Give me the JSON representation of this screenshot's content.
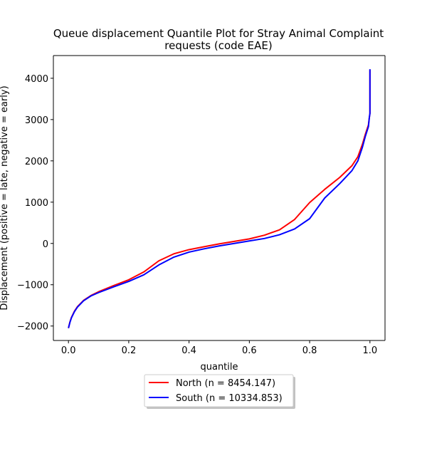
{
  "chart_data": {
    "type": "line",
    "title": "Queue displacement Quantile Plot for Stray Animal Complaint requests (code EAE)",
    "title_lines": [
      "Queue displacement Quantile Plot for Stray Animal Complaint",
      "requests (code EAE)"
    ],
    "xlabel": "quantile",
    "ylabel": "Displacement (positive = late, negative = early)",
    "xlim": [
      -0.05,
      1.05
    ],
    "ylim": [
      -2350,
      4550
    ],
    "x_ticks": [
      0.0,
      0.2,
      0.4,
      0.6,
      0.8,
      1.0
    ],
    "x_tick_labels": [
      "0.0",
      "0.2",
      "0.4",
      "0.6",
      "0.8",
      "1.0"
    ],
    "y_ticks": [
      -2000,
      -1000,
      0,
      1000,
      2000,
      3000,
      4000
    ],
    "y_tick_labels": [
      "−2000",
      "−1000",
      "0",
      "1000",
      "2000",
      "3000",
      "4000"
    ],
    "grid": false,
    "legend_position": "below plot, centered",
    "series": [
      {
        "name": "North (n = 8454.147)",
        "color": "#ff0000",
        "points": [
          [
            0.0,
            -2050
          ],
          [
            0.005,
            -1900
          ],
          [
            0.01,
            -1790
          ],
          [
            0.02,
            -1640
          ],
          [
            0.03,
            -1530
          ],
          [
            0.05,
            -1380
          ],
          [
            0.075,
            -1260
          ],
          [
            0.1,
            -1170
          ],
          [
            0.15,
            -1020
          ],
          [
            0.2,
            -880
          ],
          [
            0.25,
            -690
          ],
          [
            0.3,
            -420
          ],
          [
            0.35,
            -250
          ],
          [
            0.4,
            -150
          ],
          [
            0.45,
            -80
          ],
          [
            0.5,
            -10
          ],
          [
            0.55,
            50
          ],
          [
            0.6,
            110
          ],
          [
            0.65,
            200
          ],
          [
            0.7,
            330
          ],
          [
            0.75,
            580
          ],
          [
            0.8,
            990
          ],
          [
            0.85,
            1310
          ],
          [
            0.9,
            1600
          ],
          [
            0.94,
            1880
          ],
          [
            0.96,
            2100
          ],
          [
            0.975,
            2400
          ],
          [
            0.985,
            2650
          ],
          [
            0.995,
            2870
          ],
          [
            0.998,
            3050
          ],
          [
            1.0,
            3150
          ],
          [
            1.0,
            4200
          ]
        ]
      },
      {
        "name": "South (n = 10334.853)",
        "color": "#0000ff",
        "points": [
          [
            0.0,
            -2050
          ],
          [
            0.005,
            -1910
          ],
          [
            0.01,
            -1800
          ],
          [
            0.02,
            -1650
          ],
          [
            0.03,
            -1540
          ],
          [
            0.05,
            -1390
          ],
          [
            0.075,
            -1270
          ],
          [
            0.1,
            -1190
          ],
          [
            0.15,
            -1050
          ],
          [
            0.2,
            -920
          ],
          [
            0.25,
            -760
          ],
          [
            0.3,
            -520
          ],
          [
            0.35,
            -330
          ],
          [
            0.4,
            -210
          ],
          [
            0.45,
            -130
          ],
          [
            0.5,
            -60
          ],
          [
            0.55,
            0
          ],
          [
            0.6,
            60
          ],
          [
            0.65,
            120
          ],
          [
            0.7,
            210
          ],
          [
            0.75,
            350
          ],
          [
            0.8,
            600
          ],
          [
            0.85,
            1100
          ],
          [
            0.9,
            1450
          ],
          [
            0.94,
            1760
          ],
          [
            0.96,
            2000
          ],
          [
            0.975,
            2330
          ],
          [
            0.985,
            2600
          ],
          [
            0.995,
            2830
          ],
          [
            0.998,
            3050
          ],
          [
            1.0,
            3150
          ],
          [
            1.0,
            4220
          ]
        ]
      }
    ]
  }
}
